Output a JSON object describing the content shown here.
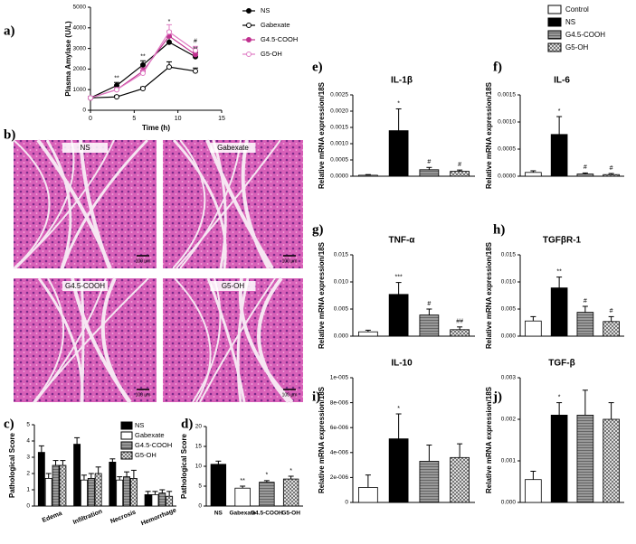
{
  "chart_data": [
    {
      "panel": "a)",
      "type": "line",
      "ylabel": "Plasma Amylase (U/L)",
      "xlabel": "Time (h)",
      "xlim": [
        0,
        15
      ],
      "xticks": [
        0,
        5,
        10,
        15
      ],
      "ylim": [
        0,
        5000
      ],
      "yticks": [
        0,
        1000,
        2000,
        3000,
        4000,
        5000
      ],
      "x": [
        0,
        3,
        6,
        9,
        12
      ],
      "series": [
        {
          "name": "NS",
          "color": "#000000",
          "marker": "filled",
          "values": [
            600,
            1200,
            2200,
            3300,
            2600
          ],
          "errors": [
            60,
            150,
            200,
            250,
            200
          ]
        },
        {
          "name": "Gabexate",
          "color": "#000000",
          "marker": "open",
          "values": [
            600,
            650,
            1050,
            2100,
            1900
          ],
          "errors": [
            50,
            60,
            80,
            250,
            150
          ]
        },
        {
          "name": "G4.5-COOH",
          "color": "#c0308f",
          "marker": "filled",
          "values": [
            600,
            1000,
            1900,
            3600,
            2700
          ],
          "errors": [
            50,
            100,
            150,
            250,
            150
          ]
        },
        {
          "name": "G5-OH",
          "color": "#e07cc4",
          "marker": "open",
          "values": [
            600,
            1000,
            1800,
            3800,
            2900
          ],
          "errors": [
            50,
            100,
            150,
            350,
            200
          ]
        }
      ],
      "annotations": [
        {
          "x": 3,
          "y": 1550,
          "text": "**"
        },
        {
          "x": 6,
          "y": 2600,
          "text": "**"
        },
        {
          "x": 9,
          "y": 4300,
          "text": "*"
        },
        {
          "x": 12,
          "y": 3350,
          "text": "#"
        },
        {
          "x": 12,
          "y": 2950,
          "text": "**"
        }
      ]
    },
    {
      "panel": "c)",
      "type": "bar",
      "ylabel": "Pathological Score",
      "ylim": [
        0,
        5
      ],
      "yticks": [
        0,
        1,
        2,
        3,
        4,
        5
      ],
      "categories": [
        "Edema",
        "Infiltration",
        "Necrosis",
        "Hemorrhage"
      ],
      "series": [
        {
          "name": "NS",
          "fill": "black",
          "values": [
            3.3,
            3.8,
            2.7,
            0.7
          ],
          "errors": [
            0.4,
            0.4,
            0.2,
            0.2
          ]
        },
        {
          "name": "Gabexate",
          "fill": "white",
          "values": [
            1.7,
            1.6,
            1.6,
            0.7
          ],
          "errors": [
            0.3,
            0.3,
            0.2,
            0.2
          ]
        },
        {
          "name": "G4.5-COOH",
          "fill": "stripe",
          "values": [
            2.5,
            1.7,
            1.8,
            0.8
          ],
          "errors": [
            0.3,
            0.3,
            0.3,
            0.2
          ]
        },
        {
          "name": "G5-OH",
          "fill": "check",
          "values": [
            2.5,
            2.0,
            1.7,
            0.6
          ],
          "errors": [
            0.3,
            0.4,
            0.5,
            0.3
          ]
        }
      ]
    },
    {
      "panel": "d)",
      "type": "bar",
      "ylabel": "Pathological Score",
      "ylim": [
        0,
        20
      ],
      "yticks": [
        0,
        5,
        10,
        15,
        20
      ],
      "categories": [
        "NS",
        "Gabexate",
        "G4.5-COOH",
        "G5-OH"
      ],
      "fills": [
        "black",
        "white",
        "stripe",
        "check"
      ],
      "values": [
        10.5,
        4.5,
        6.0,
        6.8
      ],
      "errors": [
        0.8,
        0.5,
        0.4,
        0.7
      ],
      "annotations": [
        null,
        "**",
        "*",
        "*"
      ]
    },
    {
      "panel": "e)",
      "type": "bar",
      "title": "IL-1β",
      "ylabel": "Relative mRNA expression/18S",
      "ylim": [
        0,
        0.0025
      ],
      "yticks": [
        {
          "value": 0,
          "label": "0.0000"
        },
        0.0005,
        {
          "value": 0.001,
          "label": "0.0010"
        },
        0.0015,
        {
          "value": 0.002,
          "label": "0.0020"
        },
        0.0025
      ],
      "values": [
        3e-05,
        0.0014,
        0.0002,
        0.00015
      ],
      "errors": [
        2e-05,
        0.00067,
        7e-05,
        4e-05
      ],
      "annotations": [
        null,
        "*",
        "#",
        "#"
      ]
    },
    {
      "panel": "f)",
      "type": "bar",
      "title": "IL-6",
      "ylabel": "Relative mRNA expression/18S",
      "ylim": [
        0,
        0.0015
      ],
      "yticks": [
        {
          "value": 0,
          "label": "0.0000"
        },
        0.0005,
        {
          "value": 0.001,
          "label": "0.0010"
        },
        0.0015
      ],
      "values": [
        7e-05,
        0.00077,
        4e-05,
        3e-05
      ],
      "errors": [
        3e-05,
        0.00033,
        2e-05,
        2e-05
      ],
      "annotations": [
        null,
        "*",
        "#",
        "#"
      ]
    },
    {
      "panel": "g)",
      "type": "bar",
      "title": "TNF-α",
      "ylabel": "Relative mRNA expression/18S",
      "ylim": [
        0,
        0.015
      ],
      "yticks": [
        {
          "value": 0,
          "label": "0.000"
        },
        0.005,
        {
          "value": 0.01,
          "label": "0.010"
        },
        0.015
      ],
      "values": [
        0.0008,
        0.0077,
        0.0039,
        0.0012
      ],
      "errors": [
        0.0003,
        0.0022,
        0.0011,
        0.0005
      ],
      "annotations": [
        null,
        "***",
        "#",
        "##"
      ]
    },
    {
      "panel": "h)",
      "type": "bar",
      "title": "TGFβR-1",
      "ylabel": "Relative mRNA expression/18S",
      "ylim": [
        0,
        0.015
      ],
      "yticks": [
        {
          "value": 0,
          "label": "0.000"
        },
        0.005,
        {
          "value": 0.01,
          "label": "0.010"
        },
        0.015
      ],
      "values": [
        0.0028,
        0.0089,
        0.0044,
        0.0027
      ],
      "errors": [
        0.0008,
        0.002,
        0.0011,
        0.0009
      ],
      "annotations": [
        null,
        "**",
        "#",
        "#"
      ]
    },
    {
      "panel": "i)",
      "type": "bar",
      "title": "IL-10",
      "ylabel": "Relative mRNA expression/18S",
      "ylim": [
        0,
        1e-05
      ],
      "yticks": [
        0,
        {
          "value": 2e-06,
          "label": "2e-006"
        },
        {
          "value": 4e-06,
          "label": "4e-006"
        },
        {
          "value": 6e-06,
          "label": "6e-006"
        },
        {
          "value": 8e-06,
          "label": "8e-006"
        },
        {
          "value": 1e-05,
          "label": "1e-005"
        }
      ],
      "values": [
        1.2e-06,
        5.1e-06,
        3.3e-06,
        3.6e-06
      ],
      "errors": [
        1e-06,
        2e-06,
        1.3e-06,
        1.1e-06
      ],
      "annotations": [
        null,
        "*",
        null,
        null
      ]
    },
    {
      "panel": "j)",
      "type": "bar",
      "title": "TGF-β",
      "ylabel": "Relative mRNA expression/18S",
      "ylim": [
        0,
        0.003
      ],
      "yticks": [
        {
          "value": 0,
          "label": "0.000"
        },
        0.001,
        0.002,
        0.003
      ],
      "values": [
        0.00055,
        0.0021,
        0.0021,
        0.002
      ],
      "errors": [
        0.0002,
        0.0003,
        0.0006,
        0.0004
      ],
      "annotations": [
        null,
        "*",
        null,
        null
      ]
    }
  ],
  "mrna_legend": {
    "labels": [
      "Control",
      "NS",
      "G4.5-COOH",
      "G5-OH"
    ],
    "fills": [
      "white",
      "black",
      "stripe",
      "check"
    ]
  },
  "histology": {
    "panel": "b)",
    "images": [
      {
        "label": "NS",
        "scale": "100 μm"
      },
      {
        "label": "Gabexate",
        "scale": "100 μm"
      },
      {
        "label": "G4.5-COOH",
        "scale": "100 μm"
      },
      {
        "label": "G5-OH",
        "scale": "100 μm"
      }
    ]
  }
}
